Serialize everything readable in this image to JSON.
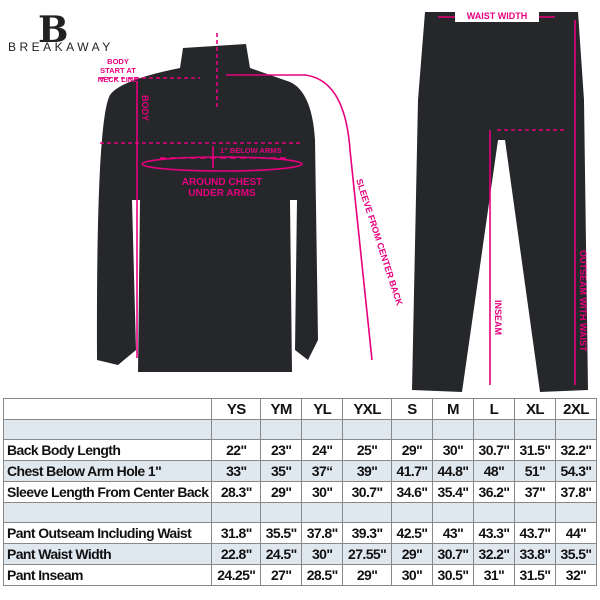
{
  "brand": {
    "logo_letter": "B",
    "name": "BREAKAWAY"
  },
  "colors": {
    "accent": "#e6007e",
    "garment": "#25272b",
    "row_shade": "#dfe7ef"
  },
  "annotations": {
    "body_start": [
      "BODY",
      "START AT",
      "NECK LINE"
    ],
    "body": "BODY",
    "below_arms": "1\" BELOW ARMS",
    "around_chest": [
      "AROUND CHEST",
      "UNDER ARMS"
    ],
    "sleeve": "SLEEVE FROM CENTER BACK",
    "waist_width": "WAIST WIDTH",
    "inseam": "INSEAM",
    "outseam": "OUTSEAM WITH WAIST"
  },
  "size_table": {
    "sizes": [
      "YS",
      "YM",
      "YL",
      "YXL",
      "S",
      "M",
      "L",
      "XL",
      "2XL"
    ],
    "rows": [
      {
        "label": "Back Body Length",
        "values": [
          "22\"",
          "23\"",
          "24\"",
          "25\"",
          "29\"",
          "30\"",
          "30.7\"",
          "31.5\"",
          "32.2\""
        ]
      },
      {
        "label": "Chest Below Arm Hole 1\"",
        "values": [
          "33\"",
          "35\"",
          "37“",
          "39\"",
          "41.7\"",
          "44.8\"",
          "48\"",
          "51\"",
          "54.3\""
        ]
      },
      {
        "label": "Sleeve Length From Center Back",
        "values": [
          "28.3\"",
          "29\"",
          "30\"",
          "30.7\"",
          "34.6\"",
          "35.4\"",
          "36.2\"",
          "37\"",
          "37.8\""
        ]
      },
      {
        "label": "Pant Outseam Including Waist",
        "values": [
          "31.8\"",
          "35.5\"",
          "37.8\"",
          "39.3\"",
          "42.5\"",
          "43\"",
          "43.3\"",
          "43.7\"",
          "44\""
        ]
      },
      {
        "label": "Pant Waist Width",
        "values": [
          "22.8\"",
          "24.5\"",
          "30\"",
          "27.55\"",
          "29\"",
          "30.7\"",
          "32.2\"",
          "33.8\"",
          "35.5\""
        ]
      },
      {
        "label": "Pant Inseam",
        "values": [
          "24.25\"",
          "27\"",
          "28.5\"",
          "29\"",
          "30\"",
          "30.5\"",
          "31\"",
          "31.5\"",
          "32\""
        ]
      }
    ]
  }
}
